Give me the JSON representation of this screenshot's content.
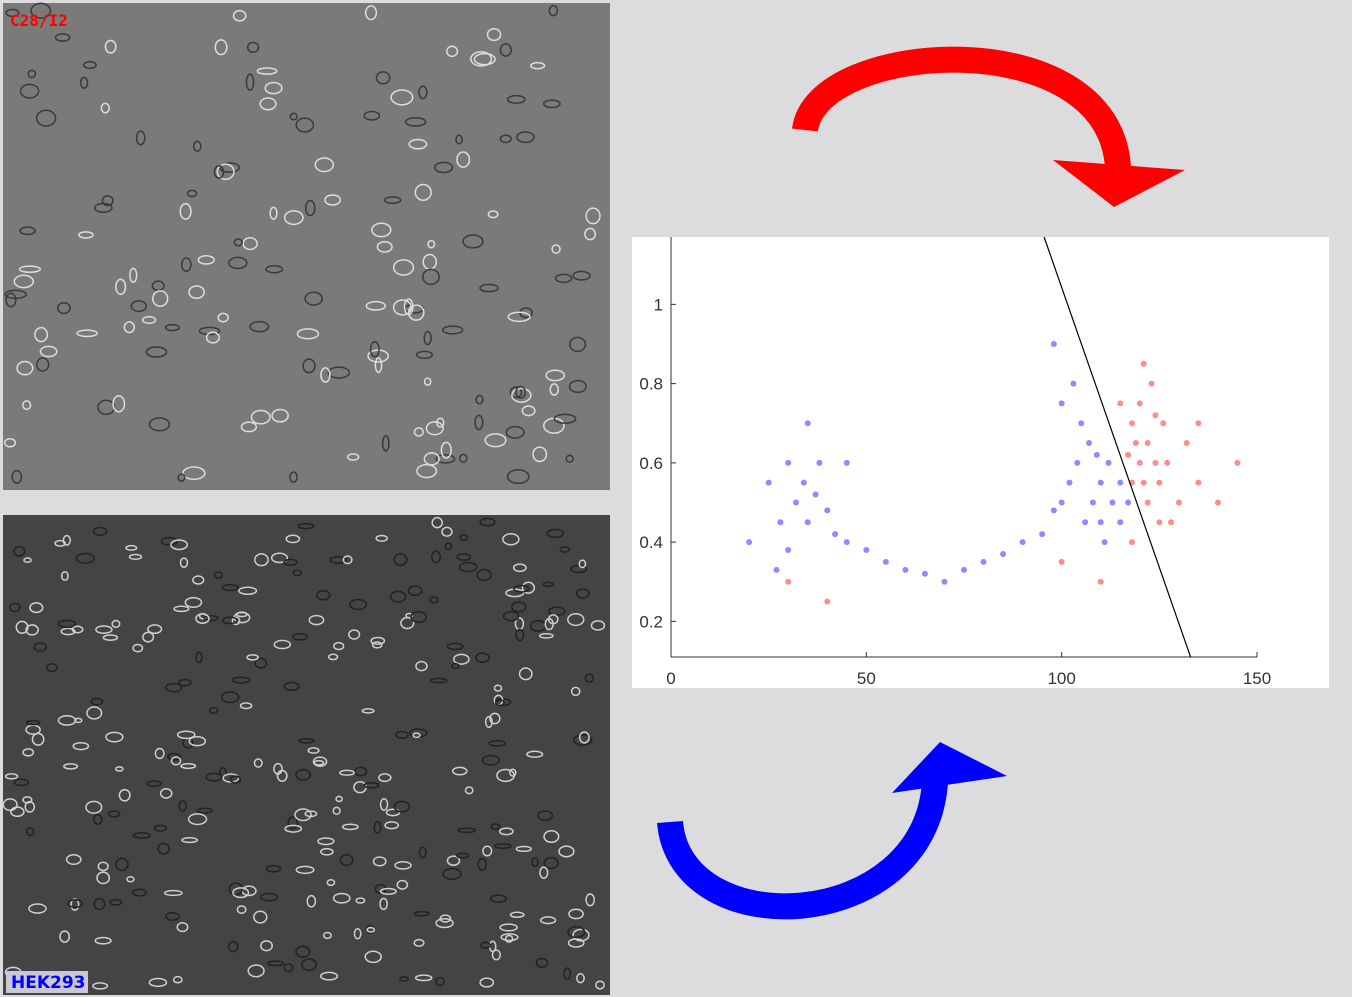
{
  "panels": {
    "top_label": "C28/I2",
    "bottom_label": "HEK293"
  },
  "chart_data": {
    "type": "scatter",
    "xlim": [
      0,
      150
    ],
    "ylim": [
      0.11,
      1.17
    ],
    "xticks": [
      0,
      50,
      100,
      150
    ],
    "yticks": [
      0.2,
      0.4,
      0.6,
      0.8,
      1
    ],
    "series": [
      {
        "name": "HEK293",
        "color": "#0000ff",
        "x": [
          25,
          28,
          30,
          32,
          34,
          35,
          37,
          38,
          40,
          42,
          30,
          27,
          45,
          50,
          55,
          60,
          65,
          70,
          75,
          80,
          85,
          90,
          95,
          98,
          100,
          102,
          104,
          105,
          103,
          107,
          108,
          110,
          110,
          112,
          113,
          115,
          106,
          109,
          111,
          100,
          98,
          20,
          35,
          45,
          115,
          117
        ],
        "values": [
          0.55,
          0.45,
          0.6,
          0.5,
          0.55,
          0.45,
          0.52,
          0.6,
          0.48,
          0.42,
          0.38,
          0.33,
          0.4,
          0.38,
          0.35,
          0.33,
          0.32,
          0.3,
          0.33,
          0.35,
          0.37,
          0.4,
          0.42,
          0.48,
          0.5,
          0.55,
          0.6,
          0.7,
          0.8,
          0.65,
          0.5,
          0.55,
          0.45,
          0.6,
          0.5,
          0.55,
          0.45,
          0.62,
          0.4,
          0.75,
          0.9,
          0.4,
          0.7,
          0.6,
          0.45,
          0.5
        ]
      },
      {
        "name": "C28/I2",
        "color": "#ff0000",
        "x": [
          118,
          120,
          122,
          124,
          120,
          118,
          125,
          123,
          121,
          119,
          126,
          127,
          122,
          130,
          128,
          135,
          140,
          145,
          115,
          117,
          124,
          121,
          110,
          100,
          30,
          40,
          135,
          132,
          125,
          118
        ],
        "values": [
          0.7,
          0.75,
          0.65,
          0.6,
          0.6,
          0.55,
          0.55,
          0.8,
          0.85,
          0.65,
          0.7,
          0.6,
          0.5,
          0.5,
          0.45,
          0.55,
          0.5,
          0.6,
          0.75,
          0.62,
          0.72,
          0.55,
          0.3,
          0.35,
          0.3,
          0.25,
          0.7,
          0.65,
          0.45,
          0.4
        ]
      }
    ],
    "boundary_line": {
      "color": "#000000",
      "x": [
        95.5,
        133
      ],
      "y": [
        1.17,
        0.11
      ]
    }
  }
}
